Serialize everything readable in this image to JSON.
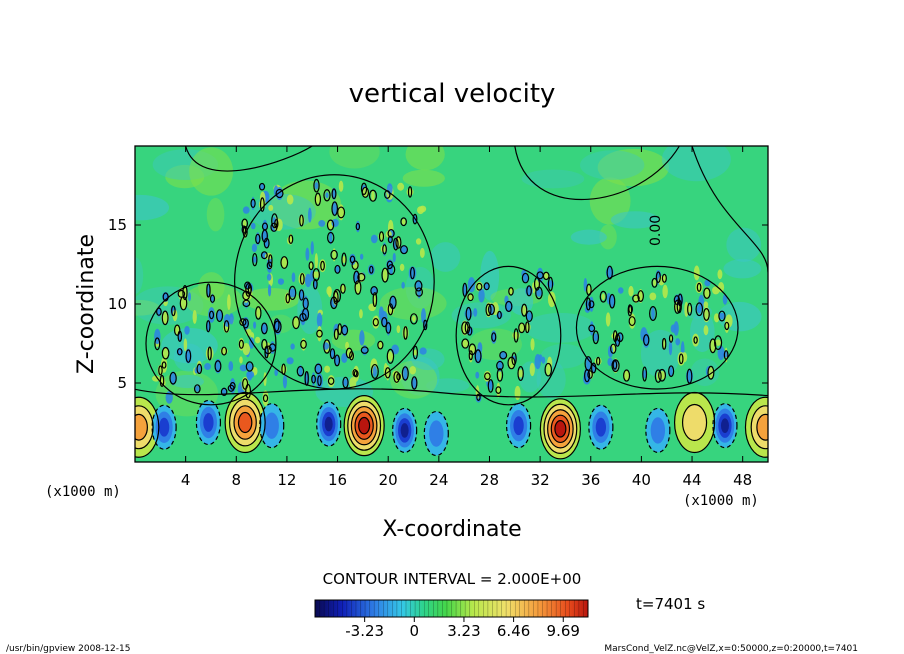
{
  "chart_data": {
    "type": "heatmap",
    "title": "vertical velocity",
    "xlabel": "X-coordinate",
    "ylabel": "Z-coordinate",
    "x_unit_left": "(x1000 m)",
    "x_unit_right": "(x1000 m)",
    "xlim": [
      0,
      50
    ],
    "ylim": [
      0,
      20
    ],
    "x_ticks": [
      4,
      8,
      12,
      16,
      20,
      24,
      28,
      32,
      36,
      40,
      44,
      48
    ],
    "y_ticks": [
      5,
      10,
      15
    ],
    "contour_interval_label": "CONTOUR INTERVAL = 2.000E+00",
    "contour_label": "0.00",
    "colorbar": {
      "tick_labels": [
        "-3.23",
        "0",
        "3.23",
        "6.46",
        "9.69"
      ],
      "tick_values": [
        -3.23,
        0,
        3.23,
        6.46,
        9.69
      ],
      "range": [
        -6.46,
        11.3
      ]
    },
    "time_label": "t=7401  s",
    "updrafts": [
      {
        "x": 0.3,
        "z": 2.2,
        "peak": 6.5
      },
      {
        "x": 8.7,
        "z": 2.5,
        "peak": 7.0
      },
      {
        "x": 18.1,
        "z": 2.3,
        "peak": 9.5
      },
      {
        "x": 33.6,
        "z": 2.1,
        "peak": 9.0
      },
      {
        "x": 44.2,
        "z": 2.5,
        "peak": 3.5
      },
      {
        "x": 49.8,
        "z": 2.2,
        "peak": 6.5
      }
    ],
    "downdrafts": [
      {
        "x": 2.3,
        "z": 2.2,
        "min": -4.5
      },
      {
        "x": 5.8,
        "z": 2.5,
        "min": -5.0
      },
      {
        "x": 10.8,
        "z": 2.3,
        "min": -3.5
      },
      {
        "x": 15.3,
        "z": 2.4,
        "min": -5.5
      },
      {
        "x": 21.3,
        "z": 2.0,
        "min": -5.5
      },
      {
        "x": 23.8,
        "z": 1.8,
        "min": -3.0
      },
      {
        "x": 30.3,
        "z": 2.3,
        "min": -5.0
      },
      {
        "x": 36.8,
        "z": 2.2,
        "min": -5.0
      },
      {
        "x": 41.3,
        "z": 2.0,
        "min": -2.5
      },
      {
        "x": 46.6,
        "z": 2.3,
        "min": -6.0
      }
    ],
    "turbulent_regions": [
      {
        "x0": 1.5,
        "x1": 10.5,
        "z0": 4.0,
        "z1": 11.0
      },
      {
        "x0": 8.5,
        "x1": 23.0,
        "z0": 5.0,
        "z1": 17.8
      },
      {
        "x0": 26.0,
        "x1": 33.0,
        "z0": 4.0,
        "z1": 12.0
      },
      {
        "x0": 35.5,
        "x1": 47.0,
        "z0": 5.0,
        "z1": 12.0
      }
    ]
  },
  "footer": {
    "left": "/usr/bin/gpview   2008-12-15",
    "right": "MarsCond_VelZ.nc@VelZ,x=0:50000,z=0:20000,t=7401"
  }
}
